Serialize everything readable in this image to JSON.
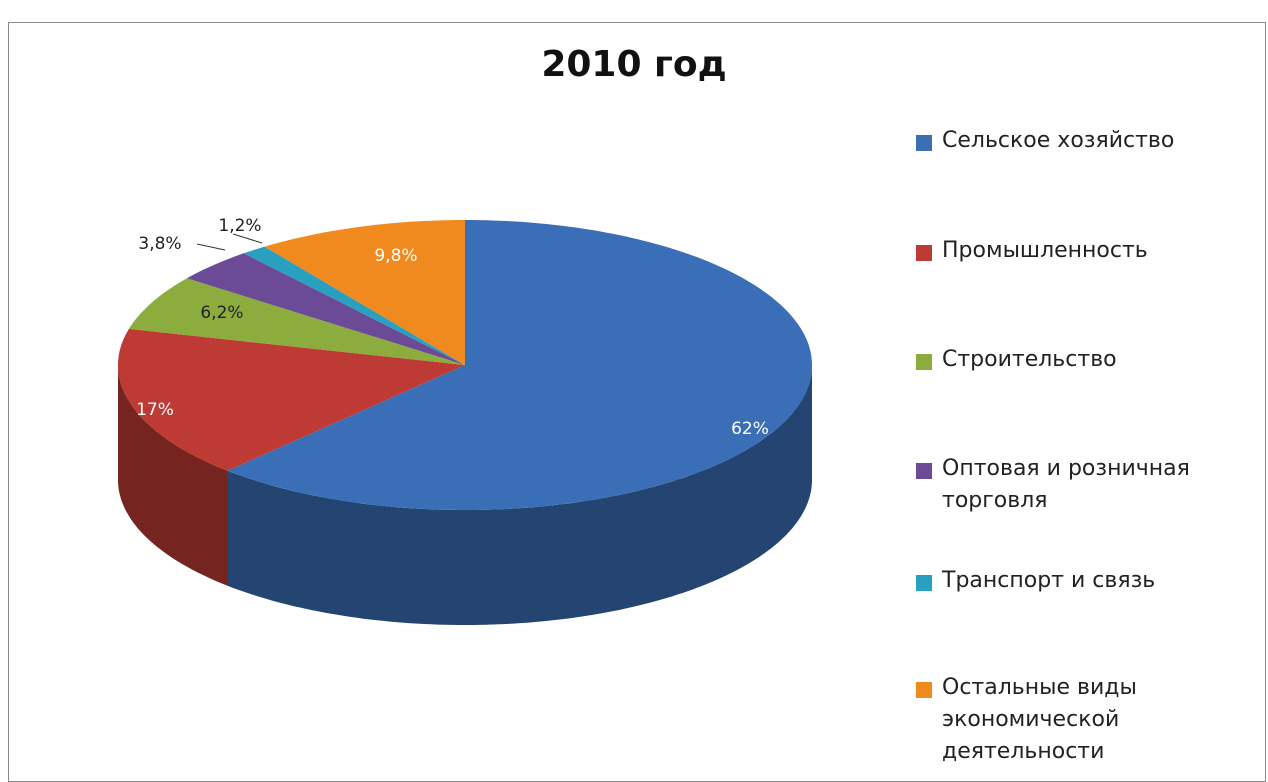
{
  "chart_data": {
    "type": "pie",
    "title": "2010 год",
    "categories": [
      "Сельское хозяйство",
      "Промышленность",
      "Строительство",
      "Оптовая и розничная торговля",
      "Транспорт и связь",
      "Остальные виды экономической деятельности"
    ],
    "values": [
      62,
      17,
      6.2,
      3.8,
      1.2,
      9.8
    ],
    "value_labels": [
      "62%",
      "17%",
      "6,2%",
      "3,8%",
      "1,2%",
      "9,8%"
    ],
    "colors": [
      "#3a6fb8",
      "#be3a34",
      "#8cac3e",
      "#6b4a96",
      "#2aa0c0",
      "#f18a1e"
    ],
    "legend": "right"
  }
}
